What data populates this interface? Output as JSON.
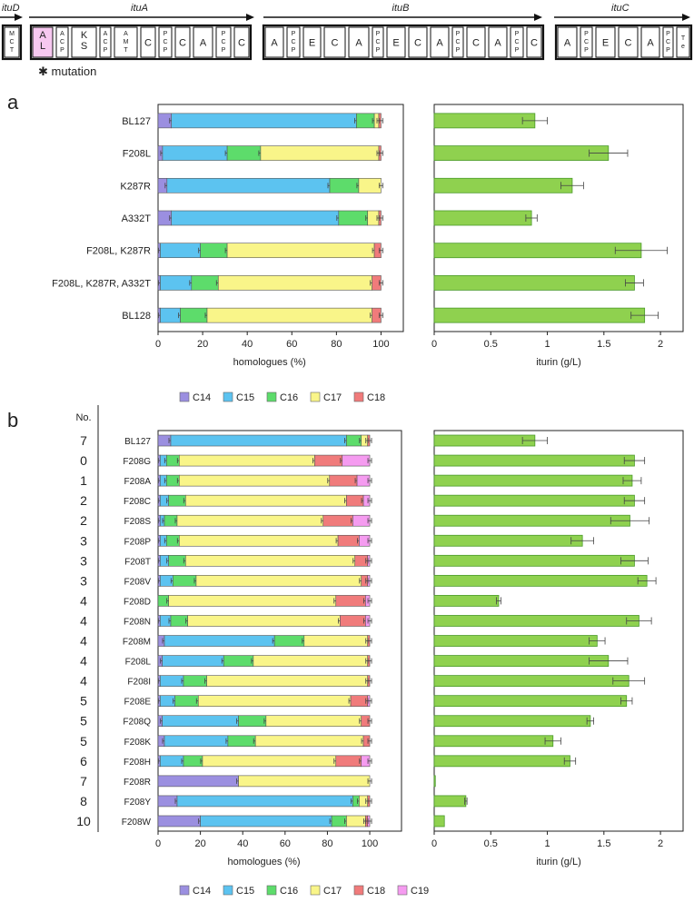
{
  "colors": {
    "C14": "#9b8fe0",
    "C15": "#5cc3f0",
    "C16": "#5ddc6b",
    "C17": "#f9f589",
    "C18": "#f07b7b",
    "C19": "#f59bf0",
    "iturin": "#8fd14f",
    "mutation_highlight": "#f7c8f0"
  },
  "operon": {
    "genes": [
      {
        "name": "ituD",
        "domains": [
          "MCT"
        ]
      },
      {
        "name": "ituA",
        "domains": [
          "AL",
          "ACP",
          "KS",
          "ACP",
          "AMT",
          "C",
          "PCP",
          "C",
          "A",
          "PCP",
          "C"
        ]
      },
      {
        "name": "ituB",
        "domains": [
          "A",
          "PCP",
          "E",
          "C",
          "A",
          "PCP",
          "E",
          "C",
          "A",
          "PCP",
          "C",
          "A",
          "PCP",
          "C"
        ]
      },
      {
        "name": "ituC",
        "domains": [
          "A",
          "PCP",
          "E",
          "C",
          "A",
          "PCP",
          "Te"
        ]
      }
    ],
    "mutation_label": "✱ mutation"
  },
  "chart_data": [
    {
      "id": "a-homologues",
      "panel": "a",
      "type": "bar",
      "stacked": true,
      "orientation": "horizontal",
      "xlabel": "homologues (%)",
      "xlim": [
        0,
        110
      ],
      "xticks": [
        "0",
        "20",
        "40",
        "60",
        "80",
        "100"
      ],
      "categories": [
        "BL127",
        "F208L",
        "K287R",
        "A332T",
        "F208L, K287R",
        "F208L, K287R, A332T",
        "BL128"
      ],
      "series": [
        {
          "name": "C14",
          "values": [
            6,
            2,
            4,
            6,
            1,
            1,
            1
          ]
        },
        {
          "name": "C15",
          "values": [
            83,
            29,
            73,
            75,
            18,
            14,
            9
          ]
        },
        {
          "name": "C16",
          "values": [
            8,
            15,
            13,
            13,
            12,
            12,
            12
          ]
        },
        {
          "name": "C17",
          "values": [
            2,
            53,
            10,
            5,
            66,
            69,
            74
          ]
        },
        {
          "name": "C18",
          "values": [
            1,
            1,
            0,
            1,
            3,
            4,
            4
          ]
        }
      ],
      "legend": [
        "C14",
        "C15",
        "C16",
        "C17",
        "C18"
      ]
    },
    {
      "id": "a-iturin",
      "panel": "a",
      "type": "bar",
      "orientation": "horizontal",
      "xlabel": "iturin (g/L)",
      "xlim": [
        0,
        2.2
      ],
      "xticks": [
        "0",
        "0.5",
        "1",
        "1.5",
        "2"
      ],
      "categories": [
        "BL127",
        "F208L",
        "K287R",
        "A332T",
        "F208L, K287R",
        "F208L, K287R, A332T",
        "BL128"
      ],
      "values": [
        0.89,
        1.54,
        1.22,
        0.86,
        1.83,
        1.77,
        1.86
      ],
      "errors": [
        0.11,
        0.17,
        0.1,
        0.05,
        0.23,
        0.08,
        0.12
      ]
    },
    {
      "id": "b-homologues",
      "panel": "b",
      "type": "bar",
      "stacked": true,
      "orientation": "horizontal",
      "xlabel": "homologues (%)",
      "xlim": [
        0,
        115
      ],
      "xticks": [
        "0",
        "20",
        "40",
        "60",
        "80",
        "100"
      ],
      "row_numbers_header": "No.",
      "row_numbers": [
        "7",
        "0",
        "1",
        "2",
        "2",
        "3",
        "3",
        "3",
        "4",
        "4",
        "4",
        "4",
        "4",
        "5",
        "5",
        "5",
        "6",
        "7",
        "8",
        "10"
      ],
      "categories": [
        "BL127",
        "F208G",
        "F208A",
        "F208C",
        "F208S",
        "F208P",
        "F208T",
        "F208V",
        "F208D",
        "F208N",
        "F208M",
        "F208L",
        "F208I",
        "F208E",
        "F208Q",
        "F208K",
        "F208H",
        "F208R",
        "F208Y",
        "F208W"
      ],
      "series": [
        {
          "name": "C14",
          "values": [
            6,
            1,
            1,
            1,
            1,
            1,
            1,
            1,
            0,
            1,
            3,
            2,
            1,
            1,
            2,
            3,
            1,
            38,
            9,
            20
          ]
        },
        {
          "name": "C15",
          "values": [
            83,
            3,
            3,
            4,
            2,
            3,
            4,
            6,
            0,
            5,
            52,
            29,
            11,
            7,
            36,
            30,
            11,
            0,
            83,
            62
          ]
        },
        {
          "name": "C16",
          "values": [
            7,
            6,
            6,
            8,
            6,
            6,
            8,
            11,
            5,
            8,
            14,
            14,
            11,
            11,
            13,
            13,
            9,
            0,
            3,
            7
          ]
        },
        {
          "name": "C17",
          "values": [
            3,
            64,
            71,
            76,
            69,
            75,
            80,
            78,
            79,
            72,
            30,
            54,
            76,
            72,
            45,
            51,
            63,
            62,
            4,
            9
          ]
        },
        {
          "name": "C18",
          "values": [
            1,
            13,
            13,
            8,
            14,
            10,
            6,
            3,
            14,
            12,
            1,
            1,
            1,
            8,
            4,
            3,
            12,
            0,
            1,
            1
          ]
        },
        {
          "name": "C19",
          "values": [
            0,
            13,
            6,
            3,
            8,
            5,
            1,
            1,
            2,
            2,
            0,
            0,
            0,
            1,
            0,
            0,
            4,
            0,
            0,
            1
          ]
        }
      ],
      "legend": [
        "C14",
        "C15",
        "C16",
        "C17",
        "C18",
        "C19"
      ]
    },
    {
      "id": "b-iturin",
      "panel": "b",
      "type": "bar",
      "orientation": "horizontal",
      "xlabel": "iturin (g/L)",
      "xlim": [
        0,
        2.2
      ],
      "xticks": [
        "0",
        "0.5",
        "1",
        "1.5",
        "2"
      ],
      "categories": [
        "BL127",
        "F208G",
        "F208A",
        "F208C",
        "F208S",
        "F208P",
        "F208T",
        "F208V",
        "F208D",
        "F208N",
        "F208M",
        "F208L",
        "F208I",
        "F208E",
        "F208Q",
        "F208K",
        "F208H",
        "F208R",
        "F208Y",
        "F208W"
      ],
      "values": [
        0.89,
        1.77,
        1.75,
        1.77,
        1.73,
        1.31,
        1.77,
        1.88,
        0.57,
        1.81,
        1.44,
        1.54,
        1.72,
        1.7,
        1.38,
        1.05,
        1.2,
        0.01,
        0.28,
        0.09
      ],
      "errors": [
        0.11,
        0.09,
        0.08,
        0.09,
        0.17,
        0.1,
        0.12,
        0.08,
        0.02,
        0.11,
        0.07,
        0.17,
        0.14,
        0.05,
        0.03,
        0.07,
        0.05,
        0.0,
        0.01,
        0.0
      ]
    }
  ]
}
